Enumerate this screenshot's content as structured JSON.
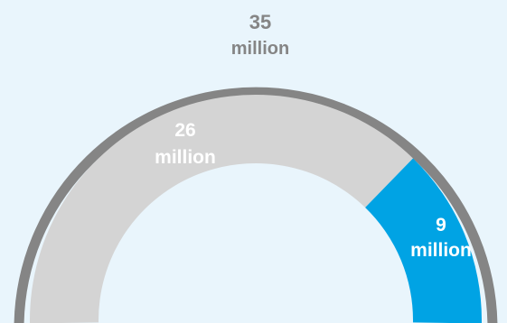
{
  "chart_data": {
    "type": "pie",
    "total": {
      "value": 35,
      "value_text": "35",
      "unit_text": "million"
    },
    "segments": [
      {
        "value": 26,
        "value_text": "26",
        "unit_text": "million",
        "color": "#d4d4d4"
      },
      {
        "value": 9,
        "value_text": "9",
        "unit_text": "million",
        "color": "#00a3e4"
      }
    ],
    "unit": "million"
  },
  "colors": {
    "background": "#e9f5fc",
    "total_ring": "#858585",
    "segment_gray": "#d4d4d4",
    "segment_blue": "#00a3e4",
    "total_label": "#858585",
    "segment_label": "#ffffff"
  }
}
